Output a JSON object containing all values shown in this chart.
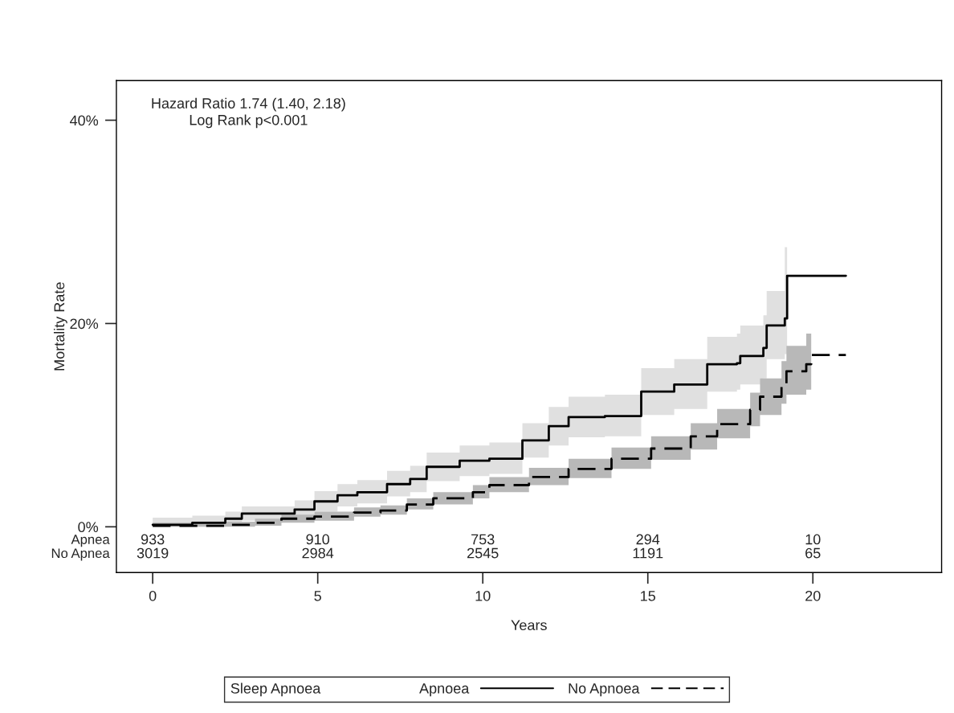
{
  "chart_data": {
    "type": "step",
    "xlabel": "Years",
    "ylabel": "Mortality Rate",
    "legend_title": "Sleep Apnoea",
    "xlim": [
      -1.1,
      23.9
    ],
    "ylim": [
      -4.5,
      43.9
    ],
    "xticks": [
      0,
      5,
      10,
      15,
      20
    ],
    "yticks": [
      {
        "value": 0,
        "label": "0%"
      },
      {
        "value": 20,
        "label": "20%"
      },
      {
        "value": 40,
        "label": "40%"
      }
    ],
    "grid": false,
    "legend": "bottom",
    "series": [
      {
        "name": "Apnoea",
        "color": "#000000",
        "line_style": "solid",
        "x": [
          0,
          1.2,
          2.2,
          2.7,
          4.3,
          4.9,
          5.6,
          6.2,
          7.1,
          7.8,
          8.3,
          9.3,
          10.2,
          11.2,
          12.0,
          12.6,
          13.7,
          14.8,
          15.8,
          16.8,
          17.7,
          17.8,
          18.5,
          18.6,
          19.15,
          19.22,
          21.0
        ],
        "values": [
          0.2,
          0.4,
          0.8,
          1.3,
          1.7,
          2.5,
          3.1,
          3.4,
          4.2,
          4.7,
          5.9,
          6.5,
          6.7,
          8.5,
          9.9,
          10.8,
          10.9,
          13.3,
          14.0,
          16.0,
          16.1,
          16.8,
          17.6,
          19.8,
          20.5,
          24.7,
          24.7
        ],
        "lower": [
          0.0,
          0.0,
          0.2,
          0.6,
          0.9,
          1.5,
          2.0,
          2.3,
          3.0,
          3.4,
          4.5,
          5.0,
          5.2,
          6.8,
          8.0,
          8.8,
          8.9,
          11.0,
          11.6,
          13.3,
          13.5,
          14.0,
          14.6,
          16.5,
          17.0,
          17.0,
          null
        ],
        "upper": [
          0.9,
          1.1,
          1.5,
          2.0,
          2.6,
          3.5,
          4.2,
          4.6,
          5.5,
          6.0,
          7.3,
          8.0,
          8.3,
          10.2,
          11.8,
          12.8,
          13.0,
          15.6,
          16.5,
          18.7,
          19.0,
          19.8,
          20.8,
          23.2,
          27.5,
          27.5,
          null
        ]
      },
      {
        "name": "No Apnoea",
        "color": "#000000",
        "line_style": "dashed",
        "x": [
          0,
          2.2,
          3.1,
          3.9,
          4.9,
          6.1,
          6.9,
          7.7,
          8.5,
          9.7,
          10.2,
          11.4,
          12.6,
          13.9,
          15.1,
          16.3,
          17.1,
          18.1,
          18.4,
          19.05,
          19.2,
          19.8,
          19.95,
          21.0
        ],
        "values": [
          0.1,
          0.2,
          0.4,
          0.8,
          1.0,
          1.4,
          1.6,
          2.2,
          2.8,
          3.4,
          4.1,
          4.9,
          5.7,
          6.7,
          7.7,
          8.9,
          10.1,
          11.5,
          12.8,
          14.1,
          15.3,
          16.0,
          16.9,
          16.9
        ],
        "lower": [
          0.0,
          0.0,
          0.1,
          0.4,
          0.6,
          1.0,
          1.2,
          1.7,
          2.2,
          2.8,
          3.4,
          4.1,
          4.8,
          5.7,
          6.6,
          7.6,
          8.7,
          9.9,
          11.0,
          12.1,
          13.0,
          13.5,
          13.5,
          null
        ],
        "upper": [
          0.4,
          0.5,
          0.8,
          1.2,
          1.5,
          1.9,
          2.1,
          2.8,
          3.4,
          4.1,
          4.9,
          5.8,
          6.7,
          7.8,
          8.9,
          10.2,
          11.6,
          13.2,
          14.6,
          16.3,
          17.8,
          19.0,
          19.0,
          null
        ]
      }
    ],
    "annotations": [
      "Hazard Ratio 1.74 (1.40, 2.18)\nLog Rank p<0.001",
      "Apnea",
      "No Apnea",
      "933",
      "910",
      "753",
      "294",
      "10",
      "3019",
      "2984",
      "2545",
      "1191",
      "65"
    ]
  }
}
